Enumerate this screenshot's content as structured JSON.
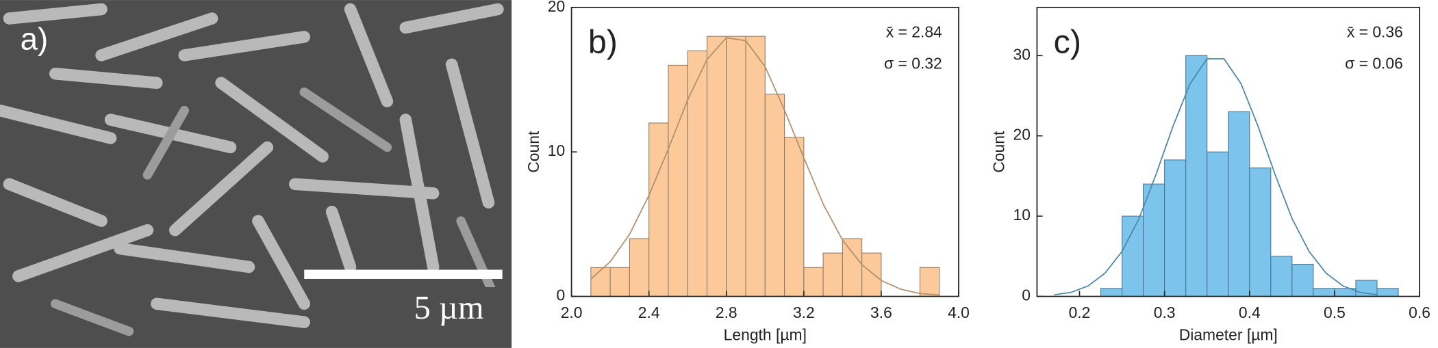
{
  "image_panel": {
    "label": "a)",
    "scale_bar": "5 µm"
  },
  "chart_data": [
    {
      "type": "histogram",
      "panel_label": "b)",
      "x_label": "Length [µm]",
      "y_label": "Count",
      "annotations": [
        "x̄ = 2.84",
        "σ = 0.32"
      ],
      "bins": [
        2.1,
        2.2,
        2.3,
        2.4,
        2.5,
        2.6,
        2.7,
        2.8,
        2.9,
        3.0,
        3.1,
        3.2,
        3.3,
        3.4,
        3.5,
        3.6,
        3.7,
        3.8,
        3.9
      ],
      "values": [
        2,
        2,
        4,
        12,
        16,
        17,
        18,
        18,
        18,
        14,
        11,
        2,
        3,
        4,
        3,
        0,
        0,
        2
      ],
      "color": "#fbc99a",
      "edge_color": "#8c7a68",
      "curve": {
        "color": "#b0906a",
        "x": [
          2.1,
          2.2,
          2.3,
          2.4,
          2.5,
          2.6,
          2.7,
          2.8,
          2.9,
          3.0,
          3.1,
          3.2,
          3.3,
          3.4,
          3.5,
          3.6,
          3.7,
          3.8,
          3.9
        ],
        "y": [
          1.2,
          2.4,
          4.3,
          7.0,
          10.2,
          13.6,
          16.4,
          17.9,
          17.7,
          15.9,
          12.9,
          9.6,
          6.4,
          3.9,
          2.2,
          1.1,
          0.5,
          0.2,
          0.1
        ]
      },
      "xlim": [
        2.0,
        4.0
      ],
      "xticks": [
        {
          "value": 2.0,
          "label": "2.0"
        },
        2.4,
        2.8,
        3.2,
        3.6,
        {
          "value": 4.0,
          "label": "4.0"
        }
      ],
      "ylim": [
        0,
        20
      ],
      "yticks": [
        0,
        10,
        20
      ],
      "grid": false
    },
    {
      "type": "histogram",
      "panel_label": "c)",
      "x_label": "Diameter [µm]",
      "y_label": "Count",
      "annotations": [
        "x̄ = 0.36",
        "σ = 0.06"
      ],
      "bins": [
        0.225,
        0.25,
        0.275,
        0.3,
        0.325,
        0.35,
        0.375,
        0.4,
        0.425,
        0.45,
        0.475,
        0.5,
        0.525,
        0.55,
        0.575
      ],
      "values": [
        1,
        10,
        14,
        17,
        30,
        18,
        23,
        16,
        5,
        4,
        1,
        1,
        2,
        1
      ],
      "color": "#7cc4ec",
      "edge_color": "#4a7590",
      "curve": {
        "color": "#4a86a8",
        "x": [
          0.17,
          0.19,
          0.21,
          0.23,
          0.25,
          0.27,
          0.29,
          0.31,
          0.33,
          0.35,
          0.37,
          0.39,
          0.41,
          0.43,
          0.45,
          0.47,
          0.49,
          0.51,
          0.53,
          0.55
        ],
        "y": [
          0.2,
          0.5,
          1.3,
          2.9,
          5.6,
          9.7,
          15.2,
          21.2,
          26.5,
          29.6,
          29.6,
          26.5,
          21.2,
          15.2,
          9.7,
          5.6,
          2.9,
          1.3,
          0.5,
          0.2
        ]
      },
      "xlim": [
        0.15,
        0.6
      ],
      "xticks": [
        0.2,
        0.3,
        0.4,
        0.5,
        0.6
      ],
      "ylim": [
        0,
        36
      ],
      "yticks": [
        0,
        10,
        20,
        30
      ],
      "grid": false
    }
  ]
}
